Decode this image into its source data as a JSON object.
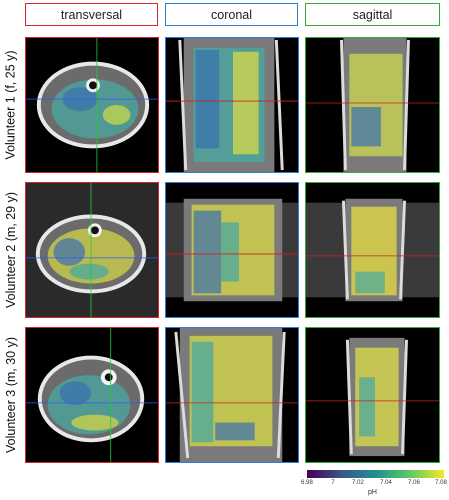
{
  "columns": [
    {
      "label": "transversal",
      "color": "#d9242b"
    },
    {
      "label": "coronal",
      "color": "#2f7fd6"
    },
    {
      "label": "sagittal",
      "color": "#37a83a"
    }
  ],
  "rows": [
    {
      "label": "Volunteer 1 (f, 25 y)"
    },
    {
      "label": "Volunteer 2 (m, 29 y)"
    },
    {
      "label": "Volunteer 3 (m, 30 y)"
    }
  ],
  "colorbar": {
    "label": "pH",
    "colormap": "viridis",
    "ticks": [
      "6.98",
      "7",
      "7.02",
      "7.04",
      "7.06",
      "7.08"
    ]
  }
}
